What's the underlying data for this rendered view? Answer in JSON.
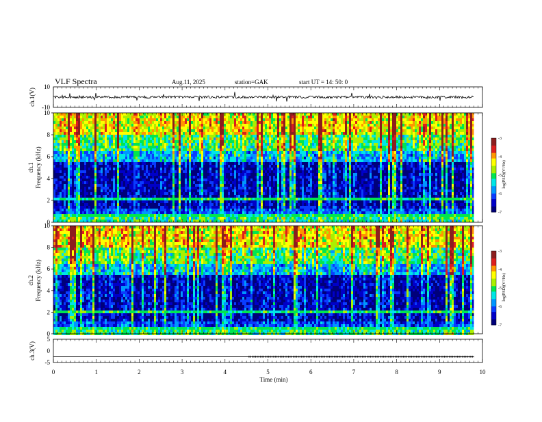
{
  "header": {
    "title": "VLF  Spectra",
    "date": "Aug.11, 2025",
    "station": "station=GAK",
    "start_ut": "start  UT  =    14: 50: 0"
  },
  "chart_data": {
    "type": "heatmap",
    "panels": [
      {
        "id": "ch1-waveform",
        "kind": "line",
        "ylabel": "ch.1(V)",
        "yticks": [
          "10",
          "-10"
        ],
        "ylim": [
          -10,
          10
        ],
        "baseline": 0
      },
      {
        "id": "ch1-spectrogram",
        "kind": "heatmap",
        "ylabel_line1": "ch.1",
        "ylabel_line2": "Frequency  (kHz)",
        "yticks": [
          "0",
          "2",
          "4",
          "6",
          "8",
          "10"
        ],
        "ylim": [
          0,
          10
        ],
        "colorbar": {
          "label": "log(PSD)(V²/Hz)",
          "ticks": [
            "-3",
            "-4",
            "-5",
            "-6",
            "-7"
          ],
          "range": [
            -7,
            -3
          ]
        }
      },
      {
        "id": "ch2-spectrogram",
        "kind": "heatmap",
        "ylabel_line1": "ch.2",
        "ylabel_line2": "Frequency  (kHz)",
        "yticks": [
          "0",
          "2",
          "4",
          "6",
          "8",
          "10"
        ],
        "ylim": [
          0,
          10
        ],
        "colorbar": {
          "label": "log(PSD)(V²/Hz)",
          "ticks": [
            "-3",
            "-4",
            "-5",
            "-6",
            "-7"
          ],
          "range": [
            -7,
            -3
          ]
        }
      },
      {
        "id": "ch3-waveform",
        "kind": "line",
        "ylabel": "ch.3(V)",
        "yticks": [
          "5",
          "0",
          "-5"
        ],
        "ylim": [
          -5,
          5
        ],
        "baseline": -2.5,
        "dotted_from_min": 4.55
      }
    ],
    "x_axis": {
      "label": "Time  (min)",
      "ticks": [
        "0",
        "1",
        "2",
        "3",
        "4",
        "5",
        "6",
        "7",
        "8",
        "9",
        "10"
      ],
      "xlim": [
        0,
        10
      ],
      "data_end": 9.8
    },
    "colormap": [
      "#00007a",
      "#0000c8",
      "#0a3cff",
      "#0096ff",
      "#00e6e6",
      "#00e650",
      "#aaf000",
      "#ffff00",
      "#ff9600",
      "#dc1e1e",
      "#8c1e1e"
    ]
  }
}
